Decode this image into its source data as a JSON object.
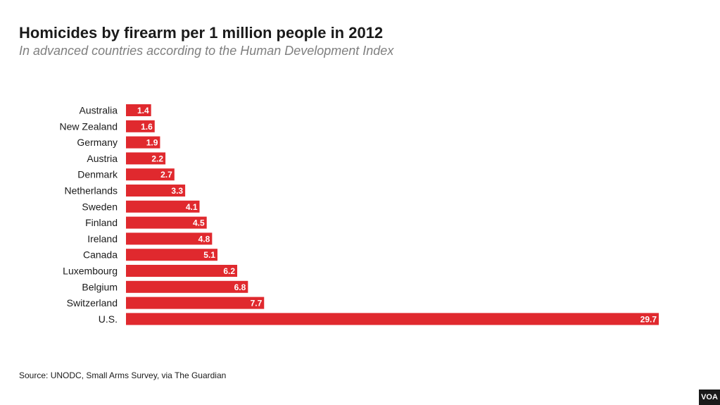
{
  "chart_data": {
    "type": "bar",
    "orientation": "horizontal",
    "title": "Homicides by firearm per 1 million people in 2012",
    "subtitle": "In advanced countries according to the Human Development Index",
    "categories": [
      "Australia",
      "New Zealand",
      "Germany",
      "Austria",
      "Denmark",
      "Netherlands",
      "Sweden",
      "Finland",
      "Ireland",
      "Canada",
      "Luxembourg",
      "Belgium",
      "Switzerland",
      "U.S."
    ],
    "values": [
      1.4,
      1.6,
      1.9,
      2.2,
      2.7,
      3.3,
      4.1,
      4.5,
      4.8,
      5.1,
      6.2,
      6.8,
      7.7,
      29.7
    ],
    "value_labels": [
      "1.4",
      "1.6",
      "1.9",
      "2.2",
      "2.7",
      "3.3",
      "4.1",
      "4.5",
      "4.8",
      "5.1",
      "6.2",
      "6.8",
      "7.7",
      "29.7"
    ],
    "xlim": [
      0,
      29.7
    ],
    "grid": false,
    "bar_color": "#e0292e"
  },
  "source": "Source: UNODC, Small Arms Survey, via The Guardian",
  "logo": "VOA"
}
